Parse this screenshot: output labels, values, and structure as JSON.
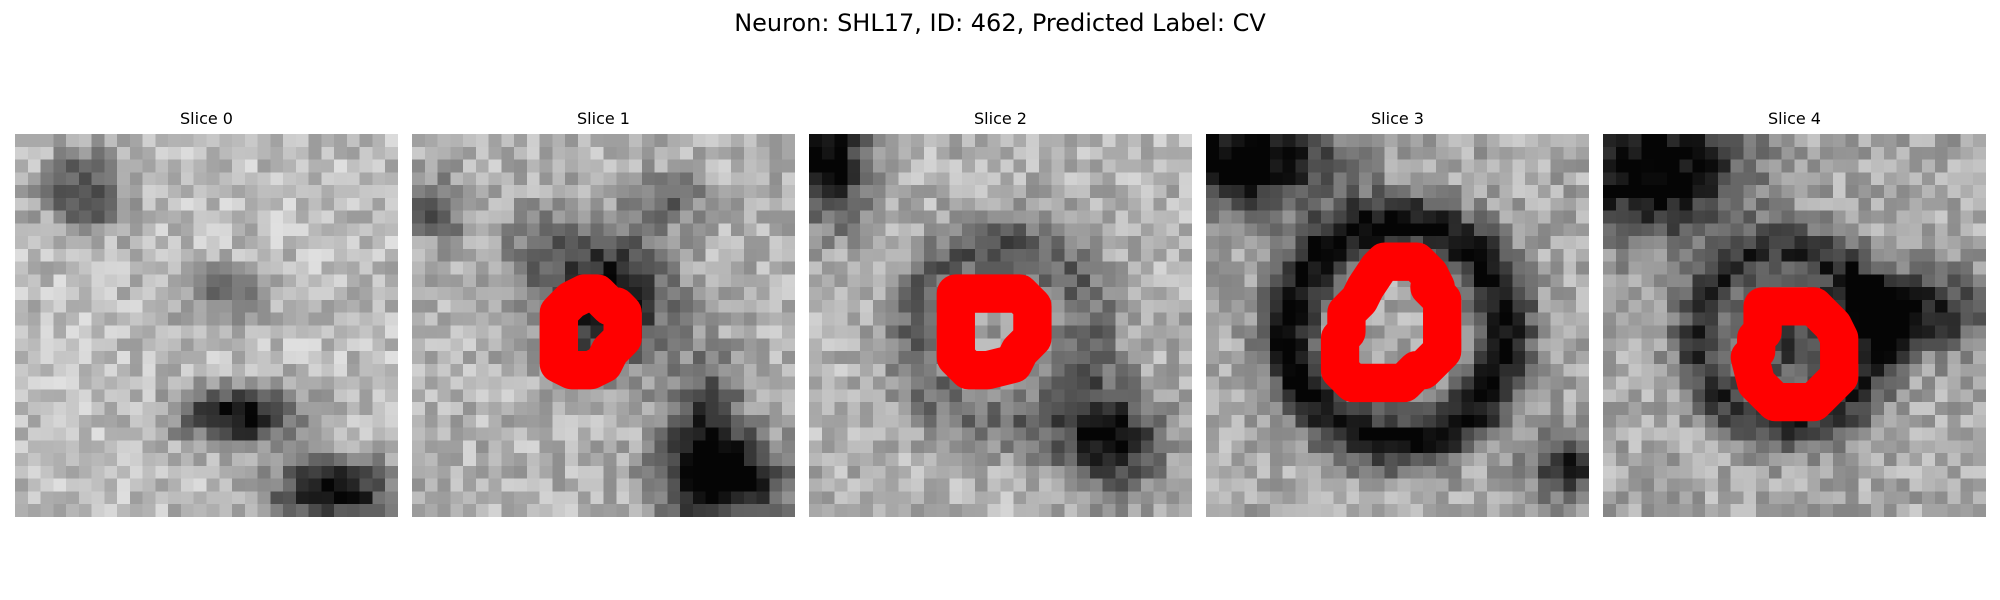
{
  "figure": {
    "title": "Neuron: SHL17, ID: 462, Predicted Label: CV",
    "contour_color": "#ff0000",
    "colormap": "gray",
    "panels": [
      {
        "title": "Slice 0",
        "has_contour": false
      },
      {
        "title": "Slice 1",
        "has_contour": true
      },
      {
        "title": "Slice 2",
        "has_contour": true
      },
      {
        "title": "Slice 3",
        "has_contour": true
      },
      {
        "title": "Slice 4",
        "has_contour": true
      }
    ]
  }
}
